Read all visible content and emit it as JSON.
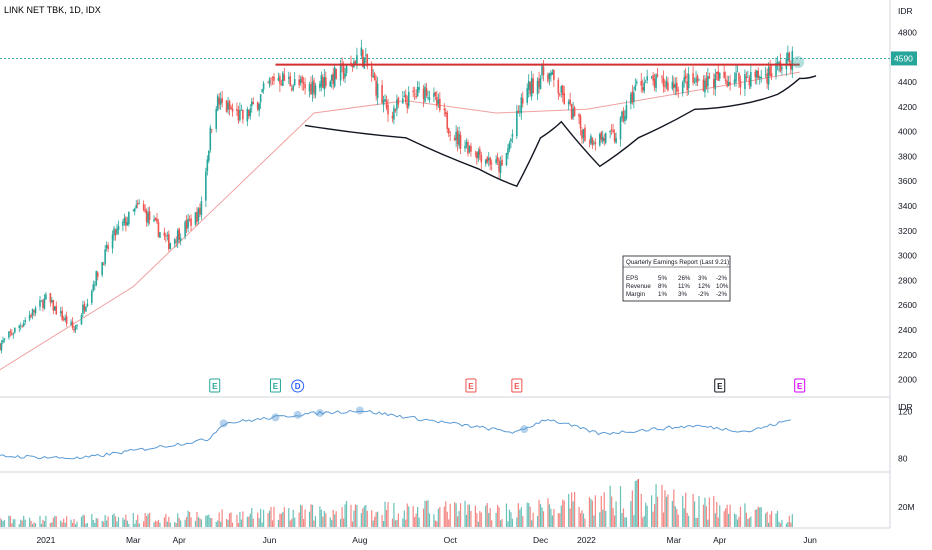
{
  "header": {
    "title": "LINK NET TBK, 1D, IDX"
  },
  "price_axis": {
    "unit": "IDR",
    "ticks": [
      "4800",
      "4600",
      "4400",
      "4200",
      "4000",
      "3800",
      "3600",
      "3400",
      "3200",
      "3000",
      "2800",
      "2600",
      "2400",
      "2200",
      "2000"
    ],
    "current_price": "4590",
    "current_price_color": "#26a69a"
  },
  "rs_axis": {
    "unit": "IDR",
    "ticks": [
      "120",
      "80"
    ]
  },
  "volume_axis": {
    "ticks": [
      "20M"
    ]
  },
  "x_axis": {
    "labels": [
      "2021",
      "Mar",
      "Apr",
      "Jun",
      "Aug",
      "Oct",
      "Dec",
      "2022",
      "Mar",
      "Apr",
      "Jun"
    ]
  },
  "earnings_markers": [
    {
      "label": "E",
      "color": "#26a69a"
    },
    {
      "label": "E",
      "color": "#26a69a"
    },
    {
      "label": "D",
      "color": "#2962ff"
    },
    {
      "label": "E",
      "color": "#ef5350"
    },
    {
      "label": "E",
      "color": "#ef5350"
    },
    {
      "label": "E",
      "color": "#131722"
    },
    {
      "label": "E",
      "color": "#d500f9"
    }
  ],
  "earnings_table": {
    "title": "Quarterly Earnings Report (Last 9.21)",
    "rows": [
      {
        "label": "EPS",
        "values": [
          "5%",
          "26%",
          "3%",
          "-2%"
        ]
      },
      {
        "label": "Revenue",
        "values": [
          "8%",
          "11%",
          "12%",
          "10%"
        ]
      },
      {
        "label": "Margin",
        "values": [
          "1%",
          "3%",
          "-2%",
          "-2%"
        ]
      }
    ]
  },
  "colors": {
    "up": "#26a69a",
    "down": "#ef5350",
    "resistance": "#d32f2f",
    "pattern": "#131722",
    "ma": "#f0a0a0",
    "rs": "#5b9bd5"
  },
  "chart_data": {
    "type": "candlestick",
    "title": "LINK NET TBK, 1D, IDX",
    "ylabel": "IDR",
    "ylim": [
      1900,
      4900
    ],
    "x_range": [
      "2020-12-01",
      "2022-06-05"
    ],
    "price_path": [
      {
        "date": "2020-12-01",
        "close": 2280
      },
      {
        "date": "2021-01-01",
        "close": 2650
      },
      {
        "date": "2021-01-20",
        "close": 2400
      },
      {
        "date": "2021-02-15",
        "close": 3150
      },
      {
        "date": "2021-03-05",
        "close": 3400
      },
      {
        "date": "2021-03-25",
        "close": 3100
      },
      {
        "date": "2021-04-15",
        "close": 3350
      },
      {
        "date": "2021-04-25",
        "close": 4250
      },
      {
        "date": "2021-05-15",
        "close": 4100
      },
      {
        "date": "2021-06-05",
        "close": 4450
      },
      {
        "date": "2021-06-25",
        "close": 4350
      },
      {
        "date": "2021-07-25",
        "close": 4500
      },
      {
        "date": "2021-08-01",
        "close": 4650
      },
      {
        "date": "2021-08-20",
        "close": 4150
      },
      {
        "date": "2021-09-15",
        "close": 4350
      },
      {
        "date": "2021-10-05",
        "close": 3950
      },
      {
        "date": "2021-11-05",
        "close": 3700
      },
      {
        "date": "2021-11-20",
        "close": 4300
      },
      {
        "date": "2021-12-05",
        "close": 4500
      },
      {
        "date": "2022-01-01",
        "close": 3950
      },
      {
        "date": "2022-01-20",
        "close": 3950
      },
      {
        "date": "2022-02-05",
        "close": 4400
      },
      {
        "date": "2022-03-01",
        "close": 4380
      },
      {
        "date": "2022-04-01",
        "close": 4420
      },
      {
        "date": "2022-05-01",
        "close": 4450
      },
      {
        "date": "2022-05-20",
        "close": 4590
      }
    ],
    "resistance_level": 4540,
    "resistance_range": [
      "2021-06-05",
      "2022-05-25"
    ],
    "current_close": 4590,
    "moving_average": [
      {
        "date": "2020-12-01",
        "value": 2080
      },
      {
        "date": "2021-03-01",
        "value": 2750
      },
      {
        "date": "2021-05-01",
        "value": 3450
      },
      {
        "date": "2021-07-01",
        "value": 4150
      },
      {
        "date": "2021-09-01",
        "value": 4250
      },
      {
        "date": "2021-11-01",
        "value": 4150
      },
      {
        "date": "2022-01-01",
        "value": 4180
      },
      {
        "date": "2022-03-01",
        "value": 4300
      },
      {
        "date": "2022-05-25",
        "value": 4480
      }
    ],
    "volume_path": [
      {
        "date": "2021-01-15",
        "value": 12
      },
      {
        "date": "2021-06-01",
        "value": 20
      },
      {
        "date": "2021-08-01",
        "value": 28
      },
      {
        "date": "2021-11-20",
        "value": 26
      },
      {
        "date": "2022-02-05",
        "value": 48
      },
      {
        "date": "2022-05-20",
        "value": 14
      }
    ],
    "rs_path": [
      {
        "date": "2020-12-01",
        "value": 82
      },
      {
        "date": "2021-01-25",
        "value": 80
      },
      {
        "date": "2021-04-20",
        "value": 96
      },
      {
        "date": "2021-05-01",
        "value": 110
      },
      {
        "date": "2021-06-25",
        "value": 118
      },
      {
        "date": "2021-08-01",
        "value": 121
      },
      {
        "date": "2021-11-15",
        "value": 102
      },
      {
        "date": "2021-12-05",
        "value": 114
      },
      {
        "date": "2022-01-10",
        "value": 101
      },
      {
        "date": "2022-03-15",
        "value": 108
      },
      {
        "date": "2022-04-20",
        "value": 103
      },
      {
        "date": "2022-05-25",
        "value": 115
      }
    ],
    "rs_ylim": [
      70,
      130
    ],
    "volume_ylim": [
      0,
      50
    ]
  }
}
